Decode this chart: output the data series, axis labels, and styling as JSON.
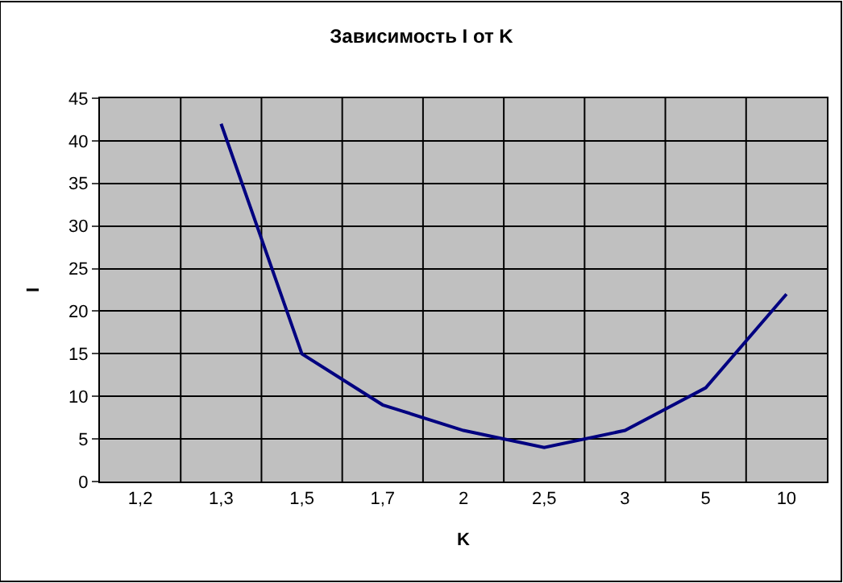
{
  "chart_data": {
    "type": "line",
    "title": "Зависимость I от K",
    "xlabel": "K",
    "ylabel": "I",
    "categories": [
      "1,2",
      "1,3",
      "1,5",
      "1,7",
      "2",
      "2,5",
      "3",
      "5",
      "10"
    ],
    "series": [
      {
        "color": "#000080",
        "values": [
          null,
          42,
          15,
          9,
          6,
          4,
          6,
          11,
          22
        ]
      }
    ],
    "ylim": [
      0,
      45
    ],
    "yticks": [
      0,
      5,
      10,
      15,
      20,
      25,
      30,
      35,
      40,
      45
    ],
    "grid": true,
    "marker": "none",
    "line_style": "solid"
  }
}
